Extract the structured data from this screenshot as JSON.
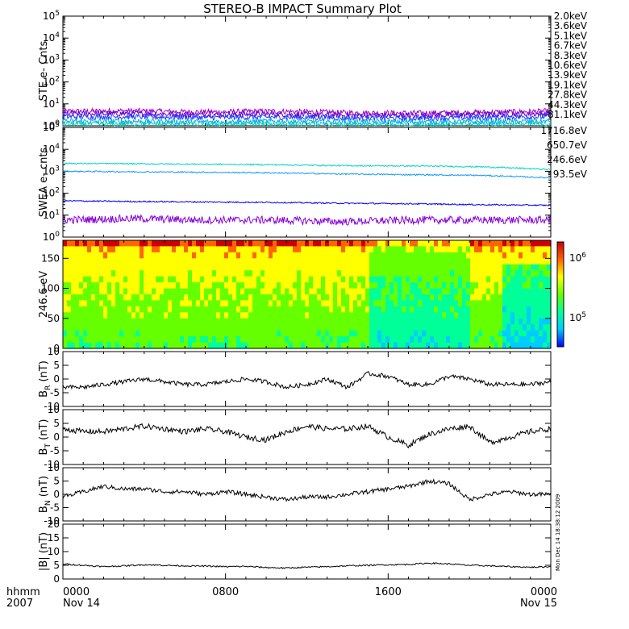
{
  "title": "STEREO-B IMPACT Summary Plot",
  "footer": {
    "left_top": "hhmm",
    "left_bottom": "2007",
    "ticks": [
      {
        "time": "0000",
        "date": "Nov 14",
        "hour": 0
      },
      {
        "time": "0800",
        "date": "",
        "hour": 8
      },
      {
        "time": "1600",
        "date": "",
        "hour": 16
      },
      {
        "time": "0000",
        "date": "Nov 15",
        "hour": 24
      }
    ]
  },
  "timestamp": "Mon Dec 14 18:38:12 2009",
  "colors": {
    "ste": [
      "#9900cc",
      "#6a00cc",
      "#1a3dff",
      "#00aaee",
      "#00d0c0",
      "#33cc33",
      "#66dd00",
      "#cccc00",
      "#ffaa00",
      "#ff7700",
      "#dd2200"
    ],
    "swea": [
      "#8800dd",
      "#0000ee",
      "#1199ff",
      "#00d5c5"
    ]
  },
  "chart_data": [
    {
      "type": "line",
      "panel": "STE",
      "ylabel": "STE e- Cnts",
      "yscale": "log",
      "ylim": [
        1,
        100000
      ],
      "yticks": [
        "10^0",
        "10^1",
        "10^2",
        "10^3",
        "10^4",
        "10^5"
      ],
      "xlim": [
        0,
        24
      ],
      "legend_placement": "right",
      "series": [
        {
          "name": "2.0keV",
          "values": [
            4.5,
            4.8,
            4.2,
            4.6,
            4.0,
            3.8,
            4.1,
            4.6
          ]
        },
        {
          "name": "3.6keV",
          "values": [
            3.5,
            3.6,
            3.2,
            3.4,
            3.0,
            2.9,
            3.2,
            3.6
          ]
        },
        {
          "name": "5.1keV",
          "values": [
            2.6,
            2.6,
            2.4,
            2.5,
            2.3,
            2.2,
            2.4,
            2.6
          ]
        },
        {
          "name": "6.7keV",
          "values": [
            1.6,
            1.6,
            1.5,
            1.6,
            1.5,
            1.5,
            1.5,
            1.6
          ]
        },
        {
          "name": "8.3keV",
          "values": [
            1.2,
            1.2,
            1.2,
            1.2,
            1.1,
            1.1,
            1.2,
            1.2
          ]
        },
        {
          "name": "10.6keV",
          "values": []
        },
        {
          "name": "13.9keV",
          "values": []
        },
        {
          "name": "19.1keV",
          "values": []
        },
        {
          "name": "27.8keV",
          "values": []
        },
        {
          "name": "44.3keV",
          "values": []
        },
        {
          "name": "81.1keV",
          "values": []
        }
      ]
    },
    {
      "type": "line",
      "panel": "SWEA",
      "ylabel": "SWEA e- cnts",
      "yscale": "log",
      "ylim": [
        1,
        100000
      ],
      "yticks": [
        "10^0",
        "10^1",
        "10^2",
        "10^3",
        "10^4",
        "10^5"
      ],
      "xlim": [
        0,
        24
      ],
      "legend_placement": "right",
      "series": [
        {
          "name": "1716.8eV",
          "values": [
            6,
            7,
            6,
            6,
            5,
            6,
            6,
            6
          ]
        },
        {
          "name": "650.7eV",
          "values": [
            45,
            42,
            40,
            38,
            35,
            33,
            30,
            28
          ]
        },
        {
          "name": "246.6eV",
          "values": [
            1000,
            950,
            900,
            850,
            750,
            700,
            650,
            500
          ]
        },
        {
          "name": "93.5eV",
          "values": [
            2300,
            2200,
            2100,
            2000,
            1800,
            1750,
            1600,
            1200
          ]
        }
      ]
    },
    {
      "type": "heatmap",
      "panel": "PAD",
      "ylabel": "246.6 eV",
      "ylim": [
        0,
        180
      ],
      "yticks": [
        0,
        50,
        100,
        150
      ],
      "xlim": [
        0,
        24
      ],
      "colorbar_ticks": [
        "10^5",
        "10^6"
      ],
      "colorscale": [
        "#0000ff",
        "#00ccff",
        "#00ff99",
        "#66ff00",
        "#ffff00",
        "#ff6600",
        "#cc0000"
      ]
    },
    {
      "type": "line",
      "panel": "BR",
      "ylabel": "B_R (nT)",
      "ylim": [
        -10,
        10
      ],
      "yticks": [
        -10,
        -5,
        0,
        5,
        10
      ],
      "xlim": [
        0,
        24
      ],
      "x": [
        0,
        1,
        2,
        3,
        4,
        5,
        6,
        7,
        8,
        9,
        10,
        11,
        12,
        13,
        14,
        15,
        16,
        17,
        18,
        19,
        20,
        21,
        22,
        23,
        24
      ],
      "values": [
        -3,
        -3,
        -2,
        -1,
        0,
        -1,
        -2,
        -2,
        -1,
        0,
        -1,
        -3,
        -2,
        0,
        -3,
        2,
        1,
        -2,
        -2,
        1,
        0,
        -2,
        -2,
        -2,
        -1
      ]
    },
    {
      "type": "line",
      "panel": "BT",
      "ylabel": "B_T (nT)",
      "ylim": [
        -10,
        10
      ],
      "yticks": [
        -10,
        -5,
        0,
        5,
        10
      ],
      "xlim": [
        0,
        24
      ],
      "x": [
        0,
        1,
        2,
        3,
        4,
        5,
        6,
        7,
        8,
        9,
        10,
        11,
        12,
        13,
        14,
        15,
        16,
        17,
        18,
        19,
        20,
        21,
        22,
        23,
        24
      ],
      "values": [
        3,
        2,
        2,
        3,
        4,
        3,
        2,
        3,
        2,
        0,
        -1,
        2,
        4,
        3,
        3,
        4,
        0,
        -3,
        1,
        3,
        4,
        -2,
        0,
        2,
        3
      ]
    },
    {
      "type": "line",
      "panel": "BN",
      "ylabel": "B_N (nT)",
      "ylim": [
        -10,
        10
      ],
      "yticks": [
        -10,
        -5,
        0,
        5,
        10
      ],
      "xlim": [
        0,
        24
      ],
      "x": [
        0,
        1,
        2,
        3,
        4,
        5,
        6,
        7,
        8,
        9,
        10,
        11,
        12,
        13,
        14,
        15,
        16,
        17,
        18,
        19,
        20,
        21,
        22,
        23,
        24
      ],
      "values": [
        -1,
        1,
        3,
        2,
        2,
        1,
        1,
        0,
        1,
        0,
        -1,
        -2,
        -1,
        -1,
        0,
        1,
        2,
        3,
        5,
        4,
        -2,
        0,
        1,
        0,
        0
      ]
    },
    {
      "type": "line",
      "panel": "B",
      "ylabel": "|B| (nT)",
      "ylim": [
        0,
        20
      ],
      "yticks": [
        0,
        5,
        10,
        15,
        20
      ],
      "xlim": [
        0,
        24
      ],
      "x": [
        0,
        1,
        2,
        3,
        4,
        5,
        6,
        7,
        8,
        9,
        10,
        11,
        12,
        13,
        14,
        15,
        16,
        17,
        18,
        19,
        20,
        21,
        22,
        23,
        24
      ],
      "values": [
        5.5,
        5.0,
        4.5,
        4.8,
        5.2,
        5.0,
        4.8,
        4.7,
        4.5,
        4.6,
        4.2,
        4.0,
        4.3,
        4.5,
        4.8,
        5.0,
        5.2,
        5.3,
        5.8,
        5.5,
        5.0,
        4.8,
        4.5,
        4.3,
        4.5
      ]
    }
  ]
}
